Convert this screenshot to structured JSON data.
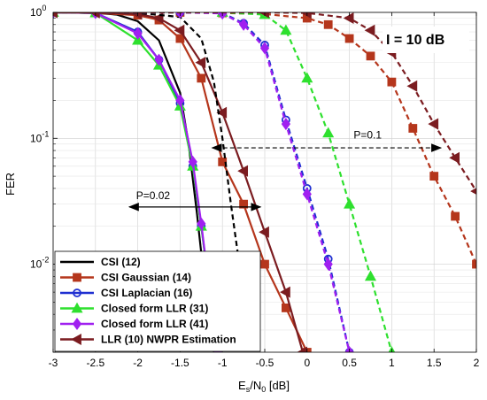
{
  "chart_data": {
    "type": "line",
    "xlabel": "E",
    "xlabel_sub": "s",
    "xlabel_mid": "/N",
    "xlabel_sub2": "0",
    "xlabel_unit": " [dB]",
    "ylabel": "FER",
    "xlim": [
      -3,
      2
    ],
    "ylim": [
      0.002,
      1
    ],
    "yscale": "log",
    "grid": true,
    "legend_position": "bottom-left",
    "box_label": "I = 10 dB",
    "xticks": [
      "-3",
      "-2.5",
      "-2",
      "-1.5",
      "-1",
      "-0.5",
      "0",
      "0.5",
      "1",
      "1.5",
      "2"
    ],
    "yticks": [
      {
        "base": "10",
        "exp": "0",
        "value": 1
      },
      {
        "base": "10",
        "exp": "-1",
        "value": 0.1
      },
      {
        "base": "10",
        "exp": "-2",
        "value": 0.01
      }
    ],
    "annotations": [
      {
        "text": "P=0.02",
        "x": -2.02,
        "y": 0.033,
        "arrow_from": -2.1,
        "arrow_to": -0.55,
        "arrow_y": 0.0285
      },
      {
        "text": "P=0.1",
        "x": 0.55,
        "y": 0.1,
        "arrow_from": -1.12,
        "arrow_to": 1.58,
        "arrow_y": 0.084
      }
    ],
    "series": [
      {
        "name": "CSI (12)",
        "color": "#000000",
        "marker": "none",
        "style": "solid",
        "x": [
          -3,
          -2.5,
          -2.25,
          -2,
          -1.75,
          -1.5,
          -1.4,
          -1.3,
          -1.2,
          -1.1
        ],
        "y": [
          1,
          0.99,
          0.96,
          0.85,
          0.6,
          0.23,
          0.09,
          0.025,
          0.006,
          0.002
        ]
      },
      {
        "name": "CSI Gaussian (14)",
        "color": "#b5361c",
        "marker": "square",
        "style": "solid",
        "x": [
          -3,
          -2.5,
          -2,
          -1.75,
          -1.5,
          -1.25,
          -1,
          -0.75,
          -0.5,
          -0.25,
          0
        ],
        "y": [
          1,
          0.99,
          0.95,
          0.87,
          0.62,
          0.3,
          0.065,
          0.03,
          0.01,
          0.0045,
          0.002
        ]
      },
      {
        "name": "CSI Laplacian (16)",
        "color": "#1f2fd1",
        "marker": "circle",
        "style": "solid",
        "x": [
          -3,
          -2.5,
          -2,
          -1.75,
          -1.5,
          -1.35,
          -1.25,
          -1.15,
          -1.05
        ],
        "y": [
          1,
          0.99,
          0.7,
          0.42,
          0.19,
          0.06,
          0.02,
          0.006,
          0.002
        ]
      },
      {
        "name": "Closed form LLR (31)",
        "color": "#2ee02e",
        "marker": "triangle",
        "style": "solid",
        "x": [
          -3,
          -2.5,
          -2,
          -1.75,
          -1.5,
          -1.35,
          -1.25,
          -1.15,
          -1.05
        ],
        "y": [
          1,
          0.99,
          0.6,
          0.38,
          0.18,
          0.06,
          0.02,
          0.006,
          0.002
        ]
      },
      {
        "name": "Closed form LLR (41)",
        "color": "#a020f0",
        "marker": "diamond",
        "style": "solid",
        "x": [
          -3,
          -2.5,
          -2,
          -1.75,
          -1.5,
          -1.35,
          -1.25,
          -1.15,
          -1.05
        ],
        "y": [
          1,
          0.99,
          0.68,
          0.42,
          0.2,
          0.065,
          0.021,
          0.006,
          0.002
        ]
      },
      {
        "name": "LLR (10) NWPR Estimation",
        "color": "#7b1c20",
        "marker": "triangle-left",
        "style": "solid",
        "x": [
          -3,
          -2.5,
          -2,
          -1.75,
          -1.5,
          -1.25,
          -1,
          -0.75,
          -0.5,
          -0.25,
          -0.05
        ],
        "y": [
          1,
          0.995,
          0.97,
          0.9,
          0.72,
          0.4,
          0.16,
          0.055,
          0.018,
          0.006,
          0.002
        ]
      },
      {
        "name": "",
        "color": "#000000",
        "marker": "none",
        "style": "dashed",
        "x": [
          -3,
          -2,
          -1.5,
          -1.25,
          -1.1,
          -1,
          -0.9,
          -0.8,
          -0.65
        ],
        "y": [
          1,
          0.99,
          0.92,
          0.62,
          0.28,
          0.1,
          0.03,
          0.01,
          0.002
        ]
      },
      {
        "name": "",
        "color": "#b5361c",
        "marker": "square",
        "style": "dashed",
        "x": [
          -3,
          -1.5,
          -1,
          -0.5,
          0,
          0.25,
          0.5,
          0.75,
          1,
          1.25,
          1.5,
          1.75,
          2
        ],
        "y": [
          1,
          1,
          0.99,
          0.97,
          0.9,
          0.8,
          0.62,
          0.45,
          0.28,
          0.12,
          0.05,
          0.024,
          0.01
        ]
      },
      {
        "name": "",
        "color": "#1f2fd1",
        "marker": "circle",
        "style": "dashed",
        "x": [
          -3,
          -1.5,
          -1,
          -0.75,
          -0.5,
          -0.25,
          0,
          0.25,
          0.5
        ],
        "y": [
          1,
          1,
          0.99,
          0.82,
          0.55,
          0.14,
          0.04,
          0.011,
          0.002
        ]
      },
      {
        "name": "",
        "color": "#2ee02e",
        "marker": "triangle",
        "style": "dashed",
        "x": [
          -3,
          -1,
          -0.5,
          -0.25,
          0,
          0.25,
          0.5,
          0.75,
          1
        ],
        "y": [
          1,
          1,
          0.96,
          0.72,
          0.3,
          0.11,
          0.03,
          0.008,
          0.002
        ]
      },
      {
        "name": "",
        "color": "#a020f0",
        "marker": "diamond",
        "style": "dashed",
        "x": [
          -3,
          -1.5,
          -1,
          -0.75,
          -0.5,
          -0.25,
          0,
          0.25,
          0.5
        ],
        "y": [
          1,
          1,
          0.98,
          0.8,
          0.52,
          0.13,
          0.036,
          0.01,
          0.002
        ]
      },
      {
        "name": "",
        "color": "#7b1c20",
        "marker": "triangle-left",
        "style": "dashed",
        "x": [
          -3,
          -0.5,
          0,
          0.5,
          0.75,
          1,
          1.25,
          1.5,
          1.75,
          2
        ],
        "y": [
          1,
          1,
          0.99,
          0.9,
          0.72,
          0.48,
          0.26,
          0.13,
          0.07,
          0.038
        ]
      }
    ]
  }
}
